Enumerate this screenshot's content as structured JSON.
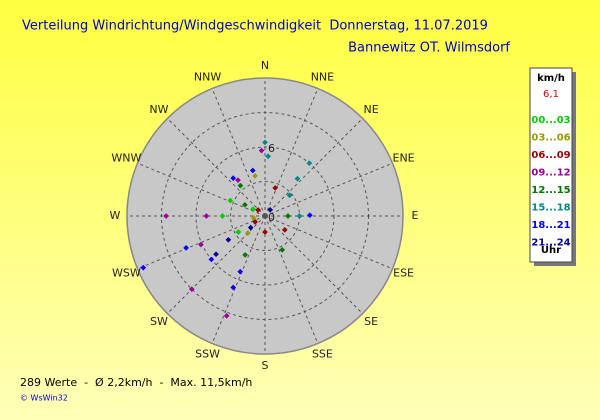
{
  "header": {
    "title": "Verteilung Windrichtung/Windgeschwindigkeit  Donnerstag, 11.07.2019",
    "location": "Bannewitz OT. Wilmsdorf"
  },
  "chart_data": {
    "type": "polar-scatter",
    "directions": [
      "N",
      "NNE",
      "NE",
      "ENE",
      "E",
      "ESE",
      "SE",
      "SSE",
      "S",
      "SSW",
      "SW",
      "WSW",
      "W",
      "WNW",
      "NW",
      "NNW"
    ],
    "xlim": [
      0,
      360
    ],
    "rlim": [
      0,
      12
    ],
    "rticks": [
      0,
      6
    ],
    "grid_rings": [
      3,
      6,
      9
    ],
    "legend_title": "km/h",
    "current_value": "6,1",
    "current_color": "#dd0000",
    "legend_footer": "Uhr",
    "series": [
      {
        "name": "00...03",
        "color": "#00cc00",
        "x": [
          294,
          270,
          239,
          300
        ],
        "values": [
          3.3,
          3.7,
          2.7,
          1.2
        ]
      },
      {
        "name": "03...06",
        "color": "#999900",
        "x": [
          346,
          225,
          260
        ],
        "values": [
          3.6,
          2.1,
          1.0
        ]
      },
      {
        "name": "06...09",
        "color": "#990000",
        "x": [
          125,
          20,
          239,
          311,
          180
        ],
        "values": [
          2.1,
          2.6,
          1.0,
          0.8,
          1.4
        ]
      },
      {
        "name": "09...12",
        "color": "#990099",
        "x": [
          270,
          225,
          201,
          323,
          357,
          246,
          270
        ],
        "values": [
          8.6,
          9.0,
          9.3,
          3.9,
          5.7,
          6.1,
          5.1
        ]
      },
      {
        "name": "12...15",
        "color": "#007700",
        "x": [
          90,
          207,
          299,
          153,
          321
        ],
        "values": [
          2.0,
          3.8,
          2.0,
          3.3,
          3.4
        ]
      },
      {
        "name": "15...18",
        "color": "#008888",
        "x": [
          0,
          40,
          41,
          50,
          90,
          3
        ],
        "values": [
          6.4,
          6.0,
          4.3,
          2.8,
          3.0,
          5.2
        ]
      },
      {
        "name": "18...21",
        "color": "#0000ff",
        "x": [
          247,
          248,
          204,
          231,
          320,
          89,
          345,
          204
        ],
        "values": [
          11.5,
          7.4,
          6.8,
          6.0,
          4.3,
          3.9,
          4.1,
          5.3
        ]
      },
      {
        "name": "21...24",
        "color": "#000099",
        "x": [
          237,
          231,
          232,
          40
        ],
        "values": [
          3.8,
          1.6,
          5.4,
          0.7
        ]
      }
    ]
  },
  "footer": {
    "summary": "289 Werte  -  Ø 2,2km/h  -  Max. 11,5km/h",
    "credit": "© WsWin32"
  }
}
